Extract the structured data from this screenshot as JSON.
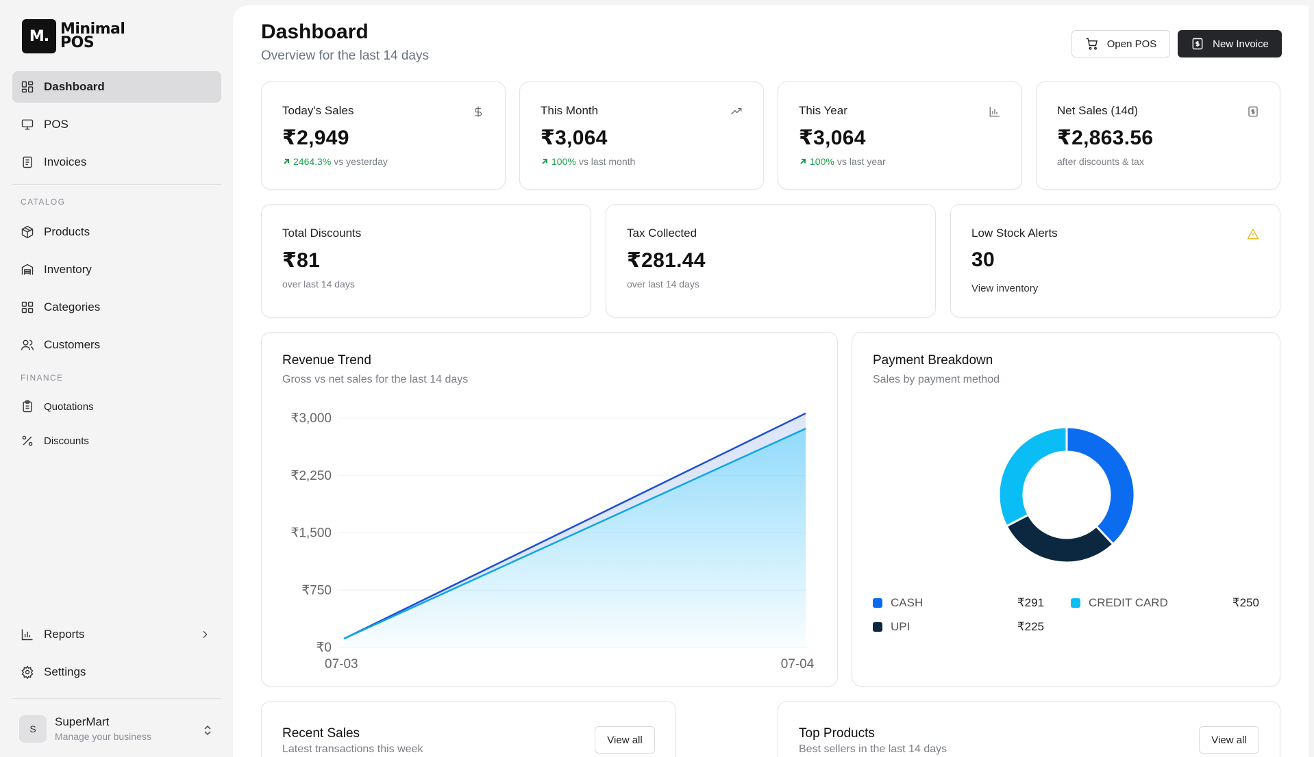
{
  "app": {
    "logo_mark": "M.",
    "logo_line1": "Minimal",
    "logo_line2": "POS"
  },
  "sidebar": {
    "items": [
      {
        "label": "Dashboard",
        "icon": "dashboard-icon"
      },
      {
        "label": "POS",
        "icon": "monitor-icon"
      },
      {
        "label": "Invoices",
        "icon": "invoice-icon"
      }
    ],
    "catalog_label": "CATALOG",
    "catalog": [
      {
        "label": "Products",
        "icon": "box-icon"
      },
      {
        "label": "Inventory",
        "icon": "warehouse-icon"
      },
      {
        "label": "Categories",
        "icon": "grid-icon"
      },
      {
        "label": "Customers",
        "icon": "users-icon"
      }
    ],
    "finance_label": "FINANCE",
    "finance": [
      {
        "label": "Quotations",
        "icon": "clipboard-icon"
      },
      {
        "label": "Discounts",
        "icon": "percent-icon"
      }
    ],
    "bottom": [
      {
        "label": "Reports",
        "icon": "bar-chart-icon"
      },
      {
        "label": "Settings",
        "icon": "gear-icon"
      }
    ],
    "user": {
      "initial": "S",
      "name": "SuperMart",
      "subtitle": "Manage your business"
    }
  },
  "header": {
    "title": "Dashboard",
    "subtitle": "Overview for the last 14 days",
    "open_pos": "Open POS",
    "new_invoice": "New Invoice"
  },
  "stats": {
    "today": {
      "label": "Today's Sales",
      "value": "₹2,949",
      "change": "2464.3%",
      "compare": "vs yesterday"
    },
    "month": {
      "label": "This Month",
      "value": "₹3,064",
      "change": "100%",
      "compare": "vs last month"
    },
    "year": {
      "label": "This Year",
      "value": "₹3,064",
      "change": "100%",
      "compare": "vs last year"
    },
    "net": {
      "label": "Net Sales (14d)",
      "value": "₹2,863.56",
      "note": "after discounts & tax"
    },
    "discounts": {
      "label": "Total Discounts",
      "value": "₹81",
      "note": "over last 14 days"
    },
    "tax": {
      "label": "Tax Collected",
      "value": "₹281.44",
      "note": "over last 14 days"
    },
    "lowstock": {
      "label": "Low Stock Alerts",
      "value": "30",
      "link": "View inventory"
    }
  },
  "revenue": {
    "title": "Revenue Trend",
    "subtitle": "Gross vs net sales for the last 14 days"
  },
  "payment": {
    "title": "Payment Breakdown",
    "subtitle": "Sales by payment method"
  },
  "recent": {
    "title": "Recent Sales",
    "subtitle": "Latest transactions this week",
    "view_all": "View all"
  },
  "top": {
    "title": "Top Products",
    "subtitle": "Best sellers in the last 14 days",
    "view_all": "View all"
  },
  "chart_data": [
    {
      "type": "area",
      "x": [
        "07-03",
        "07-04"
      ],
      "yticks": [
        "₹0",
        "₹750",
        "₹1,500",
        "₹2,250",
        "₹3,000"
      ],
      "ylim": [
        0,
        3000
      ],
      "grid": true,
      "series": [
        {
          "values": [
            115,
            3064
          ],
          "color": "#1d4ed8"
        },
        {
          "values": [
            115,
            2864
          ],
          "color": "#0ea5e9"
        }
      ]
    },
    {
      "type": "pie",
      "donut": true,
      "slices": [
        {
          "label": "CASH",
          "value": 291,
          "display": "₹291",
          "color": "#0b6cf0"
        },
        {
          "label": "UPI",
          "value": 225,
          "display": "₹225",
          "color": "#0c2740"
        },
        {
          "label": "CREDIT CARD",
          "value": 250,
          "display": "₹250",
          "color": "#0bbdf5"
        }
      ]
    }
  ]
}
